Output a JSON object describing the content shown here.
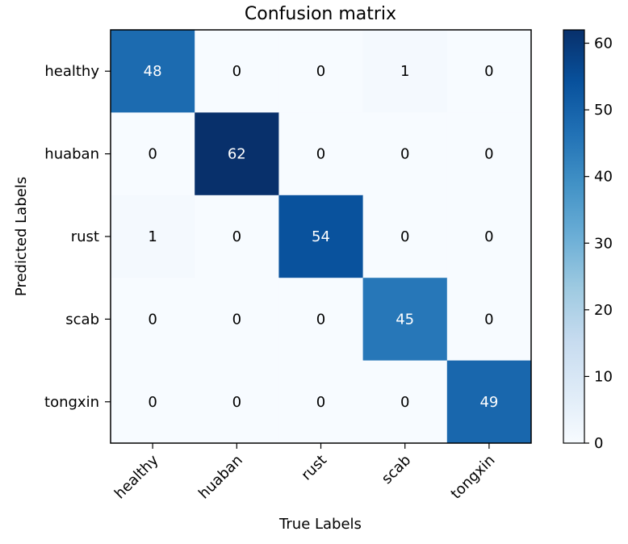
{
  "chart_data": {
    "type": "heatmap",
    "title": "Confusion matrix",
    "xlabel": "True Labels",
    "ylabel": "Predicted Labels",
    "x_categories": [
      "healthy",
      "huaban",
      "rust",
      "scab",
      "tongxin"
    ],
    "y_categories": [
      "healthy",
      "huaban",
      "rust",
      "scab",
      "tongxin"
    ],
    "matrix": [
      [
        48,
        0,
        0,
        1,
        0
      ],
      [
        0,
        62,
        0,
        0,
        0
      ],
      [
        1,
        0,
        54,
        0,
        0
      ],
      [
        0,
        0,
        0,
        45,
        0
      ],
      [
        0,
        0,
        0,
        0,
        49
      ]
    ],
    "colormap": "Blues",
    "colorbar": {
      "min": 0,
      "max": 62,
      "ticks": [
        0,
        10,
        20,
        30,
        40,
        50,
        60
      ],
      "tick_labels": [
        "0",
        "10",
        "20",
        "30",
        "40",
        "50",
        "60"
      ]
    },
    "text_color_dark": "#000000",
    "text_color_light": "#ffffff"
  }
}
